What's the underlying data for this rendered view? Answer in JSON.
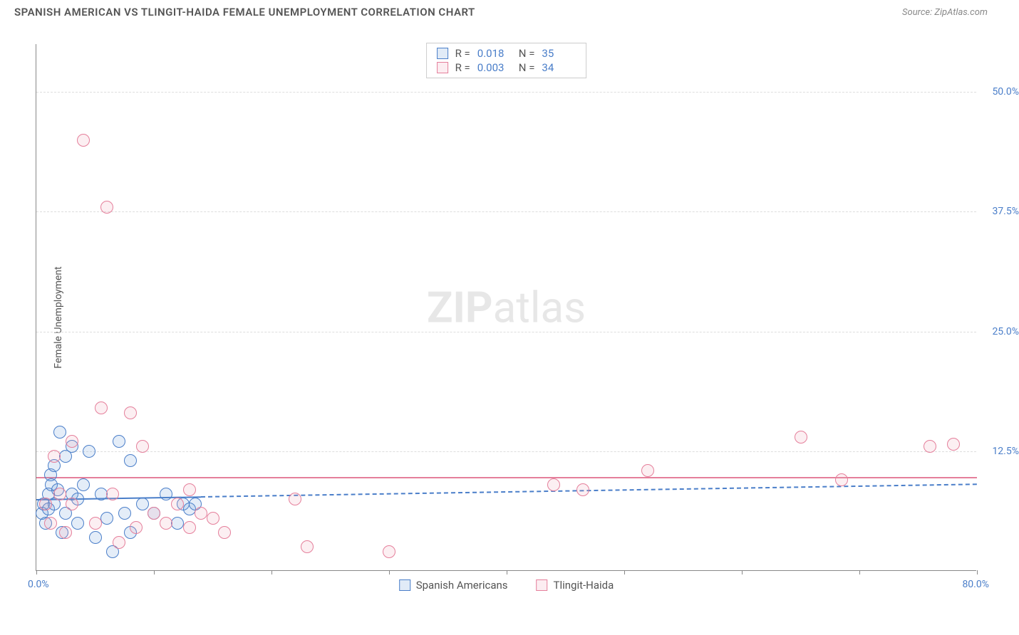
{
  "header": {
    "title": "SPANISH AMERICAN VS TLINGIT-HAIDA FEMALE UNEMPLOYMENT CORRELATION CHART",
    "source": "Source: ZipAtlas.com"
  },
  "chart": {
    "type": "scatter",
    "ylabel": "Female Unemployment",
    "watermark_bold": "ZIP",
    "watermark_light": "atlas",
    "xlim": [
      0,
      80
    ],
    "ylim": [
      0,
      55
    ],
    "xticks": [
      0,
      10,
      20,
      30,
      40,
      50,
      60,
      70,
      80
    ],
    "yticks": [
      12.5,
      25.0,
      37.5,
      50.0
    ],
    "ytick_labels": [
      "12.5%",
      "25.0%",
      "37.5%",
      "50.0%"
    ],
    "xmin_label": "0.0%",
    "xmax_label": "80.0%",
    "background_color": "#ffffff",
    "grid_color": "#dddddd",
    "axis_color": "#888888",
    "tick_label_color": "#4a7ec9",
    "marker_radius": 9,
    "marker_fill_opacity": 0.18,
    "series": [
      {
        "name": "Spanish Americans",
        "color": "#6b9bd8",
        "border_color": "#4a7ec9",
        "trend": {
          "y": 7.5,
          "slope": 0.02,
          "solid_until_x": 14,
          "line_width": 2
        },
        "R_label": "R =",
        "R": "0.018",
        "N_label": "N =",
        "N": "35",
        "points": [
          [
            0.5,
            6
          ],
          [
            0.6,
            7
          ],
          [
            0.8,
            5
          ],
          [
            1.0,
            8
          ],
          [
            1.2,
            10
          ],
          [
            1.0,
            6.5
          ],
          [
            1.3,
            9
          ],
          [
            1.5,
            7
          ],
          [
            1.5,
            11
          ],
          [
            1.8,
            8.5
          ],
          [
            2.0,
            14.5
          ],
          [
            2.2,
            4
          ],
          [
            2.5,
            6
          ],
          [
            2.5,
            12
          ],
          [
            3.0,
            8
          ],
          [
            3.0,
            13
          ],
          [
            3.5,
            5
          ],
          [
            3.5,
            7.5
          ],
          [
            4.0,
            9
          ],
          [
            4.5,
            12.5
          ],
          [
            5.0,
            3.5
          ],
          [
            5.5,
            8
          ],
          [
            6.0,
            5.5
          ],
          [
            6.5,
            2
          ],
          [
            7.0,
            13.5
          ],
          [
            7.5,
            6
          ],
          [
            8.0,
            4
          ],
          [
            8.0,
            11.5
          ],
          [
            9.0,
            7
          ],
          [
            10.0,
            6
          ],
          [
            11.0,
            8
          ],
          [
            12.0,
            5
          ],
          [
            12.5,
            7
          ],
          [
            13.0,
            6.5
          ],
          [
            13.5,
            7
          ]
        ]
      },
      {
        "name": "Tlingit-Haida",
        "color": "#f1a7b9",
        "border_color": "#e57f9b",
        "trend": {
          "y": 9.8,
          "slope": 0.0,
          "solid_until_x": 80,
          "line_width": 2
        },
        "R_label": "R =",
        "R": "0.003",
        "N_label": "N =",
        "N": "34",
        "points": [
          [
            0.8,
            7
          ],
          [
            1.2,
            5
          ],
          [
            1.5,
            12
          ],
          [
            2.0,
            8
          ],
          [
            2.5,
            4
          ],
          [
            3.0,
            13.5
          ],
          [
            3.0,
            7
          ],
          [
            4.0,
            45
          ],
          [
            5.0,
            5
          ],
          [
            5.5,
            17
          ],
          [
            6.0,
            38
          ],
          [
            6.5,
            8
          ],
          [
            7.0,
            3
          ],
          [
            8.0,
            16.5
          ],
          [
            8.5,
            4.5
          ],
          [
            9.0,
            13
          ],
          [
            10.0,
            6
          ],
          [
            11.0,
            5
          ],
          [
            12.0,
            7
          ],
          [
            13.0,
            4.5
          ],
          [
            13.0,
            8.5
          ],
          [
            14.0,
            6
          ],
          [
            15.0,
            5.5
          ],
          [
            16.0,
            4
          ],
          [
            22.0,
            7.5
          ],
          [
            23.0,
            2.5
          ],
          [
            30.0,
            2
          ],
          [
            44.0,
            9
          ],
          [
            46.5,
            8.5
          ],
          [
            52.0,
            10.5
          ],
          [
            65.0,
            14
          ],
          [
            68.5,
            9.5
          ],
          [
            76.0,
            13
          ],
          [
            78.0,
            13.2
          ]
        ]
      }
    ]
  }
}
